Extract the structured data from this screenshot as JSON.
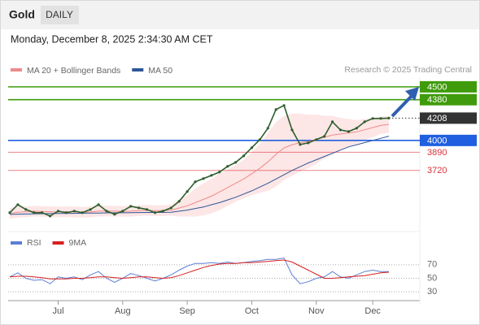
{
  "header": {
    "title": "Gold",
    "badge": "DAILY",
    "timestamp": "Monday, December 8, 2025 2:34:30 AM CET"
  },
  "chart_data": {
    "type": "line",
    "copyright": "Research © 2025 Trading Central",
    "categories": [
      null,
      null,
      null,
      null,
      null,
      null,
      "Jul",
      null,
      null,
      null,
      null,
      null,
      null,
      null,
      "Aug",
      null,
      null,
      null,
      null,
      null,
      null,
      null,
      "Sep",
      null,
      null,
      null,
      null,
      null,
      null,
      null,
      "Oct",
      null,
      null,
      null,
      null,
      null,
      null,
      null,
      "Nov",
      null,
      null,
      null,
      null,
      null,
      null,
      "Dec",
      null,
      null
    ],
    "price": {
      "color": "#2e5e2e",
      "values": [
        3326,
        3401,
        3356,
        3326,
        3326,
        3295,
        3341,
        3326,
        3341,
        3326,
        3356,
        3401,
        3341,
        3311,
        3341,
        3386,
        3371,
        3356,
        3326,
        3341,
        3371,
        3432,
        3523,
        3614,
        3644,
        3674,
        3705,
        3758,
        3795,
        3856,
        3932,
        4008,
        4114,
        4288,
        4326,
        4098,
        3962,
        3977,
        4008,
        4038,
        4174,
        4098,
        4083,
        4114,
        4174,
        4205,
        4205,
        4208
      ]
    },
    "series": [
      {
        "name": "MA 20 + Bollinger Bands",
        "color": "#f08a8a",
        "band_color": "#fde0e0",
        "values": [
          3320,
          3330,
          3335,
          3340,
          3338,
          3335,
          3333,
          3335,
          3333,
          3330,
          3333,
          3340,
          3342,
          3340,
          3338,
          3340,
          3345,
          3348,
          3345,
          3345,
          3350,
          3370,
          3390,
          3420,
          3450,
          3480,
          3520,
          3560,
          3600,
          3640,
          3690,
          3740,
          3800,
          3870,
          3930,
          3960,
          3980,
          3990,
          4010,
          4030,
          4050,
          4060,
          4070,
          4080,
          4100,
          4120,
          4140,
          4150
        ],
        "upper": [
          3370,
          3380,
          3385,
          3390,
          3388,
          3385,
          3383,
          3385,
          3383,
          3380,
          3383,
          3390,
          3392,
          3390,
          3388,
          3390,
          3395,
          3398,
          3395,
          3395,
          3400,
          3450,
          3490,
          3550,
          3600,
          3640,
          3690,
          3730,
          3770,
          3820,
          3890,
          3970,
          4070,
          4170,
          4230,
          4250,
          4250,
          4240,
          4240,
          4230,
          4230,
          4210,
          4200,
          4190,
          4200,
          4210,
          4220,
          4230
        ],
        "lower": [
          3270,
          3280,
          3285,
          3290,
          3288,
          3285,
          3283,
          3285,
          3283,
          3280,
          3283,
          3290,
          3292,
          3290,
          3288,
          3290,
          3295,
          3298,
          3295,
          3295,
          3300,
          3290,
          3290,
          3290,
          3300,
          3320,
          3350,
          3390,
          3430,
          3460,
          3490,
          3510,
          3530,
          3570,
          3630,
          3670,
          3710,
          3740,
          3780,
          3830,
          3870,
          3910,
          3940,
          3970,
          4000,
          4030,
          4060,
          4070
        ]
      },
      {
        "name": "MA 50",
        "color": "#2f5597",
        "values": [
          3310,
          3312,
          3314,
          3316,
          3317,
          3318,
          3319,
          3320,
          3320,
          3321,
          3322,
          3323,
          3324,
          3325,
          3325,
          3326,
          3327,
          3328,
          3328,
          3329,
          3330,
          3340,
          3350,
          3365,
          3380,
          3400,
          3420,
          3445,
          3470,
          3500,
          3530,
          3565,
          3600,
          3640,
          3680,
          3720,
          3755,
          3790,
          3820,
          3850,
          3880,
          3910,
          3940,
          3960,
          3980,
          4000,
          4020,
          4040
        ]
      }
    ],
    "ylim": [
      3150,
      4590
    ],
    "current": 4208,
    "levels": [
      {
        "value": 4500,
        "color": "#3f9b0b",
        "boxed": true
      },
      {
        "value": 4380,
        "color": "#3f9b0b",
        "boxed": true
      },
      {
        "value": 4000,
        "color": "#1f5fe0",
        "boxed": true
      },
      {
        "value": 3890,
        "color": "#d9323a",
        "boxed": false
      },
      {
        "value": 3720,
        "color": "#d9323a",
        "boxed": false
      }
    ],
    "rsi": {
      "ylim": [
        17,
        95
      ],
      "yticks": [
        70,
        50,
        30
      ],
      "series": [
        {
          "name": "RSI",
          "color": "#5b7fd6",
          "values": [
            52,
            58,
            50,
            47,
            48,
            42,
            52,
            50,
            52,
            48,
            55,
            60,
            50,
            44,
            50,
            57,
            54,
            50,
            46,
            50,
            55,
            62,
            68,
            72,
            72,
            73,
            72,
            74,
            72,
            73,
            75,
            76,
            78,
            78,
            80,
            55,
            42,
            45,
            50,
            52,
            60,
            52,
            50,
            55,
            60,
            62,
            60,
            60
          ]
        },
        {
          "name": "9MA",
          "color": "#d61f1f",
          "values": [
            52,
            53,
            53,
            52,
            51,
            49,
            49,
            49,
            50,
            50,
            51,
            52,
            52,
            51,
            50,
            51,
            52,
            52,
            51,
            50,
            51,
            54,
            58,
            62,
            66,
            69,
            71,
            72,
            72,
            73,
            73,
            74,
            75,
            76,
            77,
            74,
            68,
            62,
            56,
            50,
            50,
            51,
            52,
            53,
            54,
            56,
            58,
            59
          ]
        }
      ]
    }
  }
}
